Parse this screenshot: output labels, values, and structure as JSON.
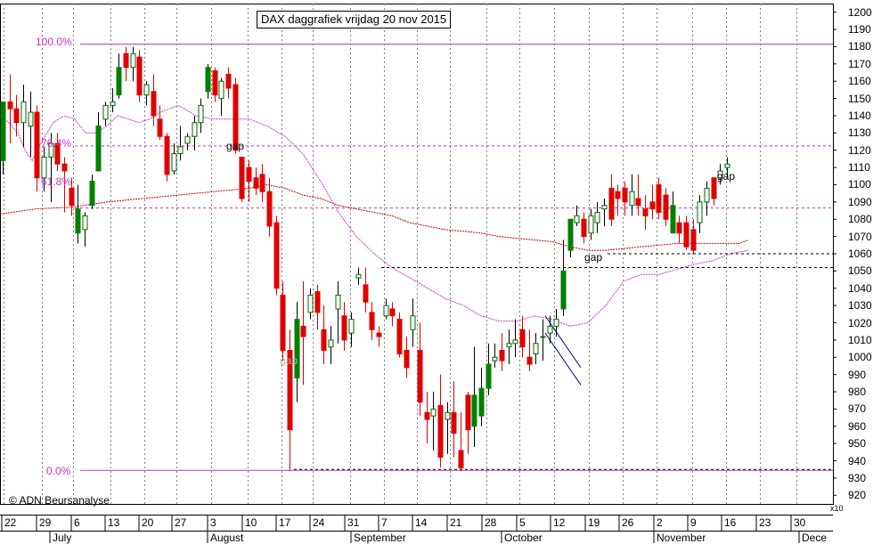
{
  "chart_data": {
    "type": "candlestick",
    "title": "DAX daggrafiek vrijdag 20 nov 2015",
    "y_tick_labels": [
      "920",
      "930",
      "940",
      "950",
      "960",
      "970",
      "980",
      "990",
      "1000",
      "1010",
      "1020",
      "1030",
      "1040",
      "1050",
      "1060",
      "1070",
      "1080",
      "1090",
      "1100",
      "1110",
      "1120",
      "1130",
      "1140",
      "1150",
      "1160",
      "1170",
      "1180",
      "1190",
      "1200"
    ],
    "y_multiplier": "x10",
    "ylim": [
      915,
      1205
    ],
    "x_date_labels": [
      "22",
      "29",
      "6",
      "13",
      "20",
      "27",
      "3",
      "10",
      "17",
      "24",
      "31",
      "7",
      "14",
      "21",
      "28",
      "5",
      "12",
      "19",
      "26",
      "2",
      "9",
      "16",
      "23",
      "30"
    ],
    "month_labels": [
      "July",
      "August",
      "September",
      "October",
      "November",
      "Dece"
    ],
    "fib_levels": [
      {
        "label": "100.0%",
        "value": 1181.5
      },
      {
        "label": "76.4%",
        "value": 1122.5
      },
      {
        "label": "61.8%",
        "value": 1086.5
      },
      {
        "label": "0.0%",
        "value": 934.5
      }
    ],
    "annotations": [
      "gap",
      "gap",
      "gap",
      "gap"
    ],
    "copyright": "© ADN Beursanalyse",
    "series": [
      {
        "name": "ohlc",
        "values": [
          [
            1114,
            1148,
            1106,
            1148
          ],
          [
            1148,
            1164,
            1124,
            1144
          ],
          [
            1144,
            1152,
            1128,
            1136
          ],
          [
            1136,
            1158,
            1122,
            1148
          ],
          [
            1134,
            1154,
            1116,
            1142
          ],
          [
            1142,
            1146,
            1096,
            1104
          ],
          [
            1104,
            1122,
            1096,
            1116
          ],
          [
            1116,
            1130,
            1090,
            1124
          ],
          [
            1124,
            1130,
            1108,
            1112
          ],
          [
            1112,
            1116,
            1084,
            1108
          ],
          [
            1098,
            1104,
            1082,
            1088
          ],
          [
            1072,
            1100,
            1066,
            1086
          ],
          [
            1074,
            1084,
            1064,
            1082
          ],
          [
            1088,
            1106,
            1086,
            1102
          ],
          [
            1108,
            1142,
            1108,
            1134
          ],
          [
            1138,
            1148,
            1134,
            1146
          ],
          [
            1146,
            1156,
            1142,
            1148
          ],
          [
            1152,
            1176,
            1150,
            1168
          ],
          [
            1176,
            1180,
            1160,
            1168
          ],
          [
            1168,
            1180,
            1160,
            1176
          ],
          [
            1174,
            1178,
            1148,
            1152
          ],
          [
            1152,
            1160,
            1146,
            1158
          ],
          [
            1154,
            1164,
            1134,
            1140
          ],
          [
            1138,
            1146,
            1126,
            1128
          ],
          [
            1128,
            1130,
            1102,
            1106
          ],
          [
            1108,
            1124,
            1106,
            1118
          ],
          [
            1118,
            1134,
            1114,
            1122
          ],
          [
            1124,
            1130,
            1120,
            1128
          ],
          [
            1128,
            1140,
            1120,
            1136
          ],
          [
            1136,
            1150,
            1130,
            1146
          ],
          [
            1154,
            1170,
            1150,
            1168
          ],
          [
            1166,
            1168,
            1148,
            1152
          ],
          [
            1150,
            1162,
            1140,
            1160
          ],
          [
            1164,
            1168,
            1150,
            1156
          ],
          [
            1158,
            1162,
            1118,
            1120
          ],
          [
            1116,
            1116,
            1090,
            1092
          ],
          [
            1110,
            1114,
            1090,
            1102
          ],
          [
            1104,
            1110,
            1094,
            1098
          ],
          [
            1106,
            1112,
            1090,
            1096
          ],
          [
            1096,
            1104,
            1070,
            1076
          ],
          [
            1078,
            1082,
            1036,
            1040
          ],
          [
            1036,
            1044,
            998,
            1004
          ],
          [
            1004,
            1016,
            934,
            958
          ],
          [
            988,
            1032,
            974,
            1022
          ],
          [
            1018,
            1044,
            984,
            1012
          ],
          [
            1026,
            1040,
            1022,
            1036
          ],
          [
            1038,
            1042,
            1016,
            1026
          ],
          [
            1016,
            1030,
            996,
            1004
          ],
          [
            1006,
            1018,
            996,
            1010
          ],
          [
            1028,
            1044,
            1008,
            1036
          ],
          [
            1024,
            1032,
            1004,
            1010
          ],
          [
            1014,
            1026,
            1006,
            1022
          ],
          [
            1046,
            1052,
            1042,
            1048
          ],
          [
            1042,
            1052,
            1026,
            1032
          ],
          [
            1026,
            1032,
            1010,
            1016
          ],
          [
            1014,
            1018,
            1006,
            1012
          ],
          [
            1024,
            1034,
            1022,
            1030
          ],
          [
            1028,
            1032,
            1018,
            1024
          ],
          [
            1022,
            1026,
            1000,
            1002
          ],
          [
            1004,
            1012,
            988,
            994
          ],
          [
            1016,
            1034,
            1006,
            1024
          ],
          [
            1004,
            1020,
            966,
            974
          ],
          [
            968,
            980,
            950,
            964
          ],
          [
            966,
            980,
            946,
            970
          ],
          [
            972,
            990,
            936,
            942
          ],
          [
            964,
            974,
            944,
            968
          ],
          [
            968,
            986,
            942,
            956
          ],
          [
            946,
            968,
            934,
            936
          ],
          [
            978,
            980,
            944,
            958
          ],
          [
            960,
            1006,
            948,
            978
          ],
          [
            966,
            994,
            960,
            982
          ],
          [
            982,
            1008,
            978,
            996
          ],
          [
            998,
            1008,
            994,
            1000
          ],
          [
            1004,
            1014,
            992,
            998
          ],
          [
            1006,
            1016,
            996,
            1008
          ],
          [
            1008,
            1022,
            1000,
            1010
          ],
          [
            1016,
            1024,
            1000,
            1006
          ],
          [
            1000,
            1016,
            992,
            996
          ],
          [
            1002,
            1014,
            996,
            1008
          ],
          [
            1012,
            1022,
            998,
            1012
          ],
          [
            1014,
            1024,
            1008,
            1018
          ],
          [
            1018,
            1028,
            1012,
            1022
          ],
          [
            1028,
            1068,
            1024,
            1050
          ],
          [
            1062,
            1080,
            1058,
            1080
          ],
          [
            1078,
            1088,
            1076,
            1082
          ],
          [
            1080,
            1084,
            1066,
            1070
          ],
          [
            1072,
            1086,
            1068,
            1082
          ],
          [
            1078,
            1090,
            1072,
            1084
          ],
          [
            1086,
            1092,
            1076,
            1088
          ],
          [
            1098,
            1106,
            1076,
            1080
          ],
          [
            1096,
            1100,
            1082,
            1092
          ],
          [
            1098,
            1102,
            1082,
            1090
          ],
          [
            1088,
            1106,
            1082,
            1096
          ],
          [
            1092,
            1106,
            1082,
            1088
          ],
          [
            1086,
            1094,
            1074,
            1082
          ],
          [
            1090,
            1100,
            1080,
            1086
          ],
          [
            1100,
            1104,
            1080,
            1084
          ],
          [
            1094,
            1098,
            1076,
            1080
          ],
          [
            1072,
            1096,
            1072,
            1088
          ],
          [
            1078,
            1082,
            1066,
            1072
          ],
          [
            1078,
            1082,
            1062,
            1064
          ],
          [
            1074,
            1080,
            1060,
            1062
          ],
          [
            1078,
            1094,
            1072,
            1090
          ],
          [
            1090,
            1102,
            1082,
            1098
          ],
          [
            1104,
            1104,
            1088,
            1092
          ],
          [
            1104,
            1112,
            1100,
            1108
          ],
          [
            1110,
            1116,
            1104,
            1112
          ]
        ]
      }
    ],
    "ma_short": [
      [
        0,
        1140
      ],
      [
        10,
        1136
      ],
      [
        20,
        1130
      ],
      [
        28,
        1120
      ],
      [
        36,
        1114
      ],
      [
        48,
        1126
      ],
      [
        60,
        1136
      ],
      [
        72,
        1140
      ],
      [
        84,
        1138
      ],
      [
        96,
        1130
      ],
      [
        108,
        1130
      ],
      [
        120,
        1134
      ],
      [
        132,
        1140
      ],
      [
        144,
        1138
      ],
      [
        156,
        1136
      ],
      [
        168,
        1138
      ],
      [
        180,
        1142
      ],
      [
        200,
        1146
      ],
      [
        220,
        1140
      ],
      [
        240,
        1138
      ],
      [
        260,
        1138
      ],
      [
        280,
        1138
      ],
      [
        300,
        1134
      ],
      [
        320,
        1128
      ],
      [
        340,
        1118
      ],
      [
        360,
        1102
      ],
      [
        380,
        1084
      ],
      [
        400,
        1070
      ],
      [
        420,
        1060
      ],
      [
        440,
        1052
      ],
      [
        460,
        1046
      ],
      [
        480,
        1040
      ],
      [
        500,
        1034
      ],
      [
        520,
        1030
      ],
      [
        540,
        1024
      ],
      [
        560,
        1021
      ],
      [
        580,
        1021
      ],
      [
        600,
        1024
      ],
      [
        620,
        1022
      ],
      [
        640,
        1018
      ],
      [
        660,
        1020
      ],
      [
        680,
        1030
      ],
      [
        700,
        1044
      ],
      [
        720,
        1048
      ],
      [
        740,
        1048
      ],
      [
        760,
        1051
      ],
      [
        780,
        1054
      ],
      [
        800,
        1056
      ],
      [
        820,
        1060
      ],
      [
        840,
        1062
      ]
    ],
    "ma_long": [
      [
        0,
        1083
      ],
      [
        40,
        1086
      ],
      [
        80,
        1087
      ],
      [
        120,
        1090
      ],
      [
        160,
        1092
      ],
      [
        200,
        1094
      ],
      [
        240,
        1096
      ],
      [
        280,
        1098
      ],
      [
        300,
        1100
      ],
      [
        320,
        1098
      ],
      [
        340,
        1094
      ],
      [
        360,
        1092
      ],
      [
        380,
        1088
      ],
      [
        400,
        1086
      ],
      [
        420,
        1084
      ],
      [
        440,
        1082
      ],
      [
        460,
        1078
      ],
      [
        480,
        1076
      ],
      [
        500,
        1074
      ],
      [
        520,
        1073
      ],
      [
        540,
        1072
      ],
      [
        560,
        1070
      ],
      [
        580,
        1069
      ],
      [
        600,
        1068
      ],
      [
        620,
        1067
      ],
      [
        640,
        1064
      ],
      [
        660,
        1062
      ],
      [
        680,
        1062
      ],
      [
        700,
        1063
      ],
      [
        720,
        1064
      ],
      [
        760,
        1066
      ],
      [
        800,
        1066
      ],
      [
        830,
        1066
      ],
      [
        840,
        1068
      ]
    ],
    "trend_lines": [
      {
        "points": [
          [
            612,
            1024
          ],
          [
            652,
            994
          ]
        ],
        "color": "#000080"
      },
      {
        "points": [
          [
            612,
            1014
          ],
          [
            652,
            984
          ]
        ],
        "color": "#000080"
      },
      {
        "points": [
          [
            682,
            1060
          ],
          [
            935,
            1060
          ]
        ],
        "color": "#000000",
        "dash": true
      },
      {
        "points": [
          [
            428,
            1052
          ],
          [
            935,
            1052
          ]
        ],
        "color": "#000000",
        "dash": true
      },
      {
        "points": [
          [
            330,
            935
          ],
          [
            935,
            935
          ]
        ],
        "color": "#000000",
        "dash": true
      }
    ],
    "colors": {
      "up": "#008000",
      "down": "#e00000",
      "ma_short": "#cc33cc",
      "ma_long": "#cc0000",
      "fib": "#cc33cc",
      "grid": "#808080"
    },
    "grid": true
  }
}
